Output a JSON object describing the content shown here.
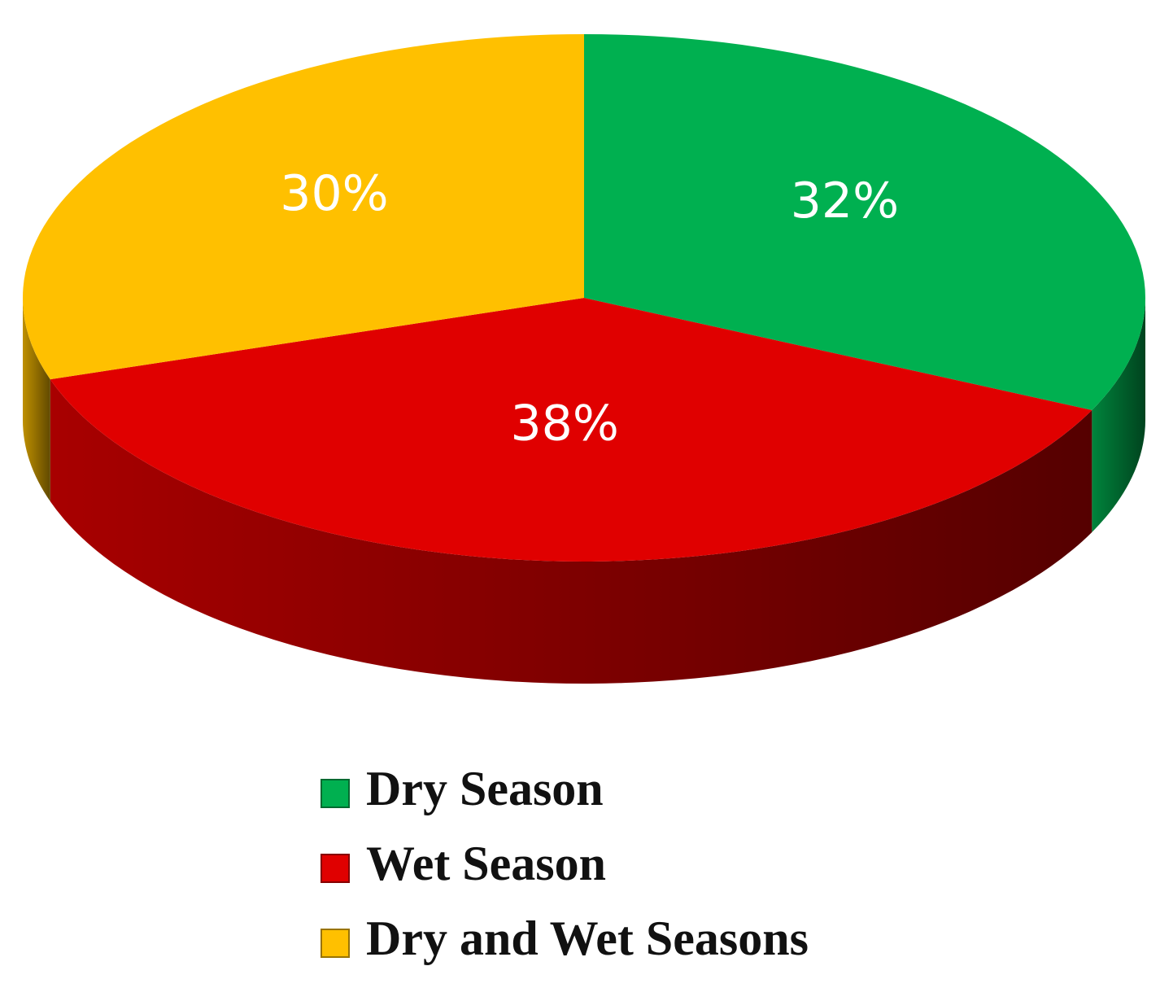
{
  "chart_data": {
    "type": "pie",
    "categories": [
      "Dry Season",
      "Wet Season",
      "Dry and Wet Seasons"
    ],
    "values": [
      32,
      38,
      30
    ],
    "value_labels": [
      "32%",
      "38%",
      "30%"
    ],
    "colors": [
      "#00b050",
      "#e00000",
      "#ffc000"
    ],
    "legend": "bottom"
  }
}
